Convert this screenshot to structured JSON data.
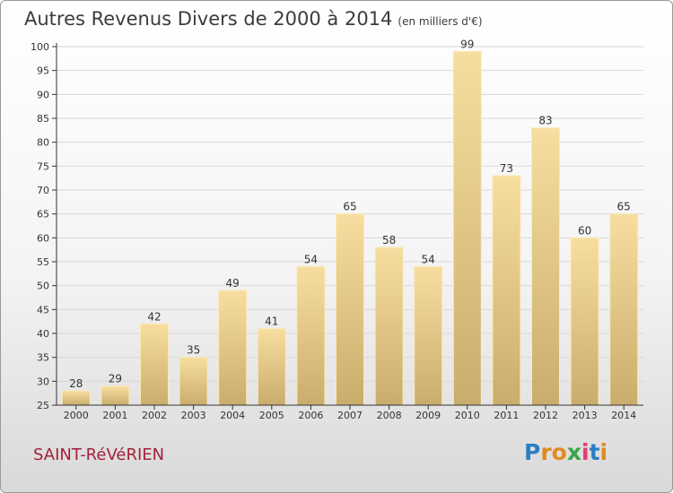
{
  "header": {
    "title": "Autres Revenus Divers de 2000 à 2014",
    "subtitle": "(en milliers d'€)"
  },
  "footer": {
    "city": "SAINT-RéVéRIEN",
    "logo": {
      "letters": [
        "P",
        "r",
        "o",
        "x",
        "i",
        "t",
        "i"
      ],
      "colors": [
        "#2a7fc4",
        "#e08a1e",
        "#e08a1e",
        "#3aa34a",
        "#e23d6e",
        "#2a7fc4",
        "#e08a1e"
      ]
    }
  },
  "chart_data": {
    "type": "bar",
    "categories": [
      "2000",
      "2001",
      "2002",
      "2003",
      "2004",
      "2005",
      "2006",
      "2007",
      "2008",
      "2009",
      "2010",
      "2011",
      "2012",
      "2013",
      "2014"
    ],
    "values": [
      28,
      29,
      42,
      35,
      49,
      41,
      54,
      65,
      58,
      54,
      99,
      73,
      83,
      60,
      65
    ],
    "ylim": [
      25,
      100
    ],
    "yticks": [
      25,
      30,
      35,
      40,
      45,
      50,
      55,
      60,
      65,
      70,
      75,
      80,
      85,
      90,
      95,
      100
    ],
    "grid": true,
    "colors": {
      "bar_light": "#f7dea0",
      "bar_dark": "#c9ad6c",
      "grid": "#d8d8d8",
      "axis": "#333333"
    }
  }
}
